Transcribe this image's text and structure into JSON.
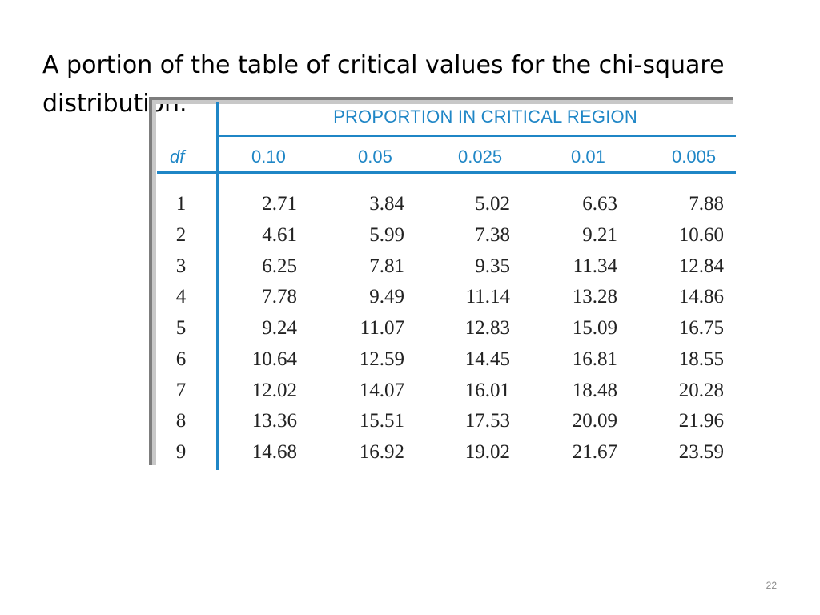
{
  "slide": {
    "title": "A portion of the table of critical values for the chi-square distribution.",
    "page_number": "22"
  },
  "colors": {
    "table_accent": "#1f86c6",
    "frame_shadow": "#7d7d7d"
  },
  "table": {
    "group_header": "PROPORTION IN CRITICAL REGION",
    "df_header": "df",
    "columns": [
      "0.10",
      "0.05",
      "0.025",
      "0.01",
      "0.005"
    ],
    "rows": [
      {
        "df": "1",
        "values": [
          "2.71",
          "3.84",
          "5.02",
          "6.63",
          "7.88"
        ]
      },
      {
        "df": "2",
        "values": [
          "4.61",
          "5.99",
          "7.38",
          "9.21",
          "10.60"
        ]
      },
      {
        "df": "3",
        "values": [
          "6.25",
          "7.81",
          "9.35",
          "11.34",
          "12.84"
        ]
      },
      {
        "df": "4",
        "values": [
          "7.78",
          "9.49",
          "11.14",
          "13.28",
          "14.86"
        ]
      },
      {
        "df": "5",
        "values": [
          "9.24",
          "11.07",
          "12.83",
          "15.09",
          "16.75"
        ]
      },
      {
        "df": "6",
        "values": [
          "10.64",
          "12.59",
          "14.45",
          "16.81",
          "18.55"
        ]
      },
      {
        "df": "7",
        "values": [
          "12.02",
          "14.07",
          "16.01",
          "18.48",
          "20.28"
        ]
      },
      {
        "df": "8",
        "values": [
          "13.36",
          "15.51",
          "17.53",
          "20.09",
          "21.96"
        ]
      },
      {
        "df": "9",
        "values": [
          "14.68",
          "16.92",
          "19.02",
          "21.67",
          "23.59"
        ]
      }
    ]
  }
}
